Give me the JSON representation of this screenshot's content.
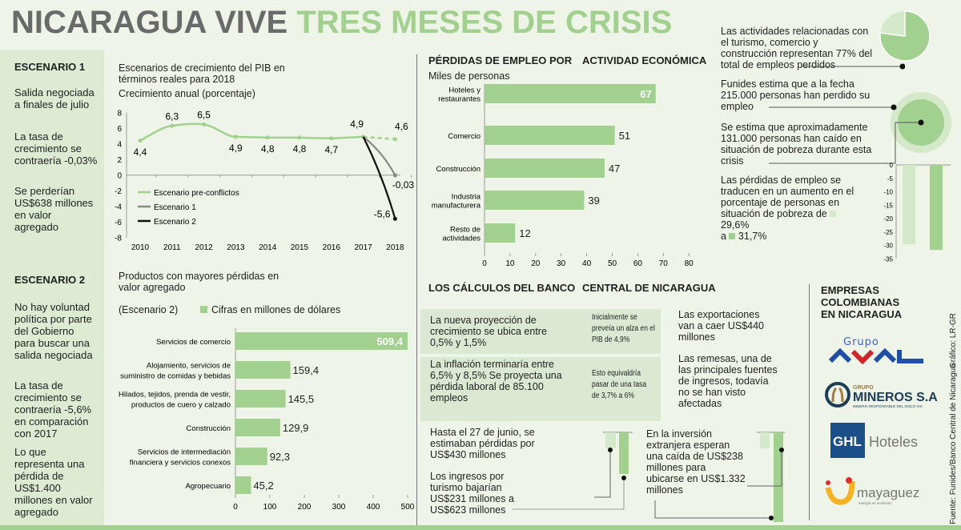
{
  "title": {
    "part1": "NICARAGUA VIVE",
    "part2": "TRES MESES DE CRISIS"
  },
  "colors": {
    "green": "#a2d08e",
    "light_green": "#d4e8ca",
    "gray": "#888888",
    "black": "#111111",
    "title_gray": "#6a6a6a"
  },
  "scenario1": {
    "heading": "ESCENARIO 1",
    "p1": "Salida negociada a finales de julio",
    "p2": "La tasa de crecimiento se contraería -0,03%",
    "p3": "Se perderían US$638 millones en valor agregado"
  },
  "scenario2": {
    "heading": "ESCENARIO 2",
    "p1": "No hay voluntad política por parte del Gobierno para buscar una salida negociada",
    "p2": "La tasa de crecimiento se contraería -5,6% en comparación con 2017",
    "p3": "Lo que representa una pérdida de US$1.400 millones en valor agregado"
  },
  "employment": {
    "heading1": "PÉRDIDAS DE EMPLEO POR",
    "heading2": "ACTIVIDAD ECONÓMICA",
    "subtitle": "Miles de personas"
  },
  "right": {
    "p1": "Las actividades relacionadas con el turismo, comercio y construcción representan 77% del total de empleos perdidos",
    "p2": "Funides estima que a la fecha 215.000 personas han perdido su empleo",
    "p3": "Se estima que aproximadamente 131.000 personas han caído en situación de pobreza durante esta crisis",
    "p4": "Las pérdidas de empleo se traducen en un aumento en el porcentaje de personas en situación de pobreza de",
    "v1": "29,6%",
    "a": "a",
    "v2": "31,7%"
  },
  "bank": {
    "heading1": "LOS CÁLCULOS DEL BANCO",
    "heading2": "CENTRAL DE NICARAGUA",
    "b1": "La nueva proyección de crecimiento se ubica entre 0,5% y 1,5%",
    "b1note": "Inicialmente se preveía un alza en el PIB de 4,9%",
    "b2": "La inflación terminaría entre 6,5% y 8,5% Se proyecta una pérdida laboral de 85.100 empleos",
    "b2note": "Esto equivaldría pasar de una tasa de 3,7% a 6%",
    "exports": "Las exportaciones van a caer US$440 millones",
    "remesas": "Las remesas, una de las principales fuentes de ingresos, todavía no se han visto afectadas",
    "junio": "Hasta el 27 de junio, se estimaban pérdidas por US$430 millones",
    "turismo": "Los ingresos por turismo bajarían US$231 millones a US$623 millones",
    "inversion": "En la inversión extranjera esperan una caída de US$238 millones para ubicarse en US$1.332 millones"
  },
  "companies": {
    "heading": "EMPRESAS COLOMBIANAS EN NICARAGUA",
    "logos": [
      "Grupo AVAL",
      "GRUPO MINEROS S.A. MINERÍA RESPONSABLE DEL SIGLO XXI",
      "GHL Hoteles",
      "mayaguez energía en evolución"
    ]
  },
  "credits": {
    "source": "Fuente: Funides/Banco Central de Nicaragua",
    "graphic": "Gráfico: LR-GR"
  },
  "chart_data": [
    {
      "type": "line",
      "title": "Escenarios de crecimiento del PIB en términos reales para 2018",
      "subtitle": "Crecimiento anual (porcentaje)",
      "x": [
        "2010",
        "2011",
        "2012",
        "2013",
        "2014",
        "2015",
        "2016",
        "2017",
        "2018"
      ],
      "ylim": [
        -8,
        8
      ],
      "yticks": [
        8,
        6,
        4,
        2,
        0,
        -2,
        -4,
        -6,
        -8
      ],
      "series": [
        {
          "name": "Escenario pre-conflictos",
          "color": "#a2d08e",
          "values": [
            4.4,
            6.3,
            6.5,
            4.9,
            4.8,
            4.8,
            4.7,
            4.9,
            4.6
          ],
          "labels": [
            "4,4",
            "6,3",
            "6,5",
            "4,9",
            "4,8",
            "4,8",
            "4,7",
            "4,9",
            "4,6"
          ],
          "dashed_last": true
        },
        {
          "name": "Escenario 1",
          "color": "#888888",
          "values": [
            null,
            null,
            null,
            null,
            null,
            null,
            null,
            4.9,
            -0.03
          ],
          "labels": [
            "-0,03"
          ]
        },
        {
          "name": "Escenario 2",
          "color": "#111111",
          "values": [
            null,
            null,
            null,
            null,
            null,
            null,
            null,
            4.9,
            -5.6
          ],
          "labels": [
            "-5,6"
          ]
        }
      ],
      "legend": "bottom-left"
    },
    {
      "type": "bar",
      "orientation": "horizontal",
      "categories": [
        "Hoteles y restaurantes",
        "Comercio",
        "Construcción",
        "Industria manufacturera",
        "Resto de actividades"
      ],
      "values": [
        67,
        51,
        47,
        39,
        12
      ],
      "labels": [
        "67",
        "51",
        "47",
        "39",
        "12"
      ],
      "xlim": [
        0,
        80
      ],
      "xticks": [
        0,
        10,
        20,
        30,
        40,
        50,
        60,
        70,
        80
      ]
    },
    {
      "type": "bar",
      "orientation": "horizontal",
      "title": "Productos con mayores pérdidas en valor agregado",
      "subtitle": "(Escenario 2)",
      "legend": "Cifras en millones de dólares",
      "categories": [
        "Servicios de comercio",
        "Alojamiento, servicios de suministro de comidas y bebidas",
        "Hilados, tejidos, prenda de vestir, productos de cuero y calzado",
        "Construcción",
        "Servicios de intermediación financiera y servicios conexos",
        "Agropecuario"
      ],
      "values": [
        509.4,
        159.4,
        145.5,
        129.9,
        92.3,
        45.2
      ],
      "labels": [
        "509,4",
        "159,4",
        "145,5",
        "129,9",
        "92,3",
        "45,2"
      ],
      "xlim": [
        0,
        500
      ],
      "xticks": [
        0,
        100,
        200,
        300,
        400,
        500
      ]
    },
    {
      "type": "pie",
      "values": [
        77,
        23
      ]
    },
    {
      "type": "bar",
      "values": [
        -29.6,
        -31.7
      ],
      "ylim": [
        -35,
        0
      ],
      "yticks": [
        0,
        -5,
        -10,
        -15,
        -20,
        -25,
        -30,
        -35
      ]
    }
  ]
}
